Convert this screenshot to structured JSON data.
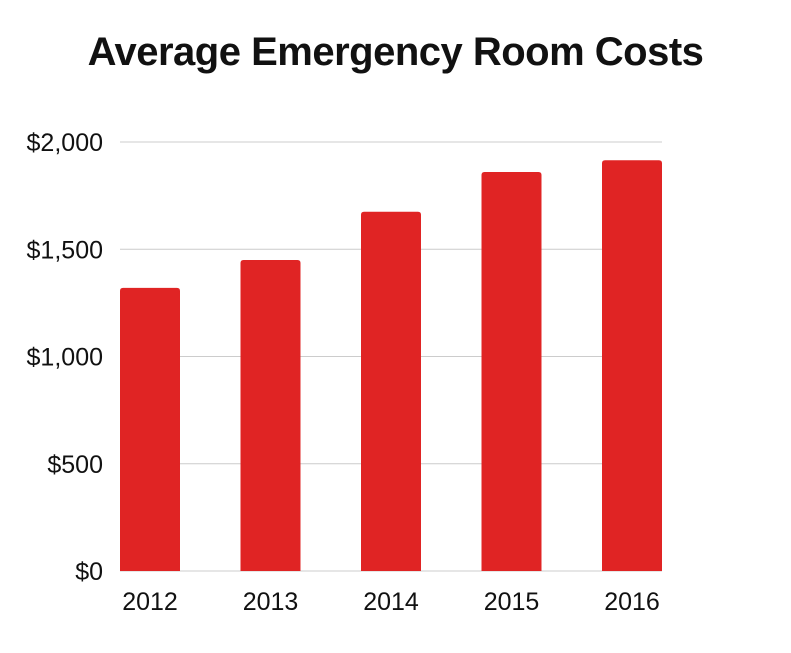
{
  "chart_data": {
    "type": "bar",
    "title": "Average Emergency Room Costs",
    "categories": [
      "2012",
      "2013",
      "2014",
      "2015",
      "2016"
    ],
    "values": [
      1320,
      1450,
      1675,
      1860,
      1915
    ],
    "ylim": [
      0,
      2000
    ],
    "yticks": [
      0,
      500,
      1000,
      1500,
      2000
    ],
    "ytick_labels": [
      "$0",
      "$500",
      "$1,000",
      "$1,500",
      "$2,000"
    ],
    "grid": true,
    "legend": "none",
    "bar_color": "#e02424",
    "grid_color": "#cccccc"
  }
}
